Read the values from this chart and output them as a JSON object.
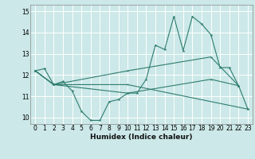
{
  "xlabel": "Humidex (Indice chaleur)",
  "background_color": "#cce8e8",
  "grid_color": "#ffffff",
  "line_color": "#2e7d6e",
  "xlim": [
    -0.5,
    23.5
  ],
  "ylim": [
    9.7,
    15.3
  ],
  "xticks": [
    0,
    1,
    2,
    3,
    4,
    5,
    6,
    7,
    8,
    9,
    10,
    11,
    12,
    13,
    14,
    15,
    16,
    17,
    18,
    19,
    20,
    21,
    22,
    23
  ],
  "yticks": [
    10,
    11,
    12,
    13,
    14,
    15
  ],
  "series1_x": [
    0,
    1,
    2,
    3,
    4,
    5,
    6,
    7,
    8,
    9,
    10,
    11,
    12,
    13,
    14,
    15,
    16,
    17,
    18,
    19,
    20,
    21,
    22,
    23
  ],
  "series1_y": [
    12.2,
    12.3,
    11.55,
    11.7,
    11.25,
    10.3,
    9.87,
    9.87,
    10.75,
    10.85,
    11.15,
    11.15,
    11.8,
    13.4,
    13.2,
    14.75,
    13.15,
    14.75,
    14.4,
    13.9,
    12.35,
    12.35,
    11.5,
    10.4
  ],
  "series2_x": [
    0,
    2,
    10,
    23
  ],
  "series2_y": [
    12.2,
    11.55,
    11.55,
    10.4
  ],
  "series3_x": [
    0,
    2,
    10,
    19,
    22
  ],
  "series3_y": [
    12.2,
    11.55,
    12.2,
    12.85,
    11.5
  ],
  "series4_x": [
    0,
    2,
    10,
    19,
    22
  ],
  "series4_y": [
    12.2,
    11.55,
    11.15,
    11.8,
    11.5
  ]
}
